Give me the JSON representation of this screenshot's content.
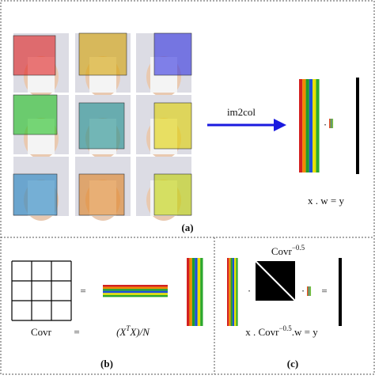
{
  "panel_a": {
    "arrow_label": "im2col",
    "dot": "·",
    "equation": "x . w = y",
    "label": "(a)"
  },
  "panel_b": {
    "matrix_label": "Covr",
    "equals_left": "=",
    "equals_mid": "=",
    "formula": {
      "base": "(X",
      "sup": "T",
      "rest": "X)/N"
    },
    "label": "(b)"
  },
  "panel_c": {
    "power": {
      "base": "Covr",
      "sup": "−0.5"
    },
    "dot_left": "·",
    "dot_right": "·",
    "equals": "=",
    "equation": {
      "base": "x . Covr",
      "sup": "−0.5",
      "rest": ".w = y"
    },
    "label": "(c)"
  }
}
